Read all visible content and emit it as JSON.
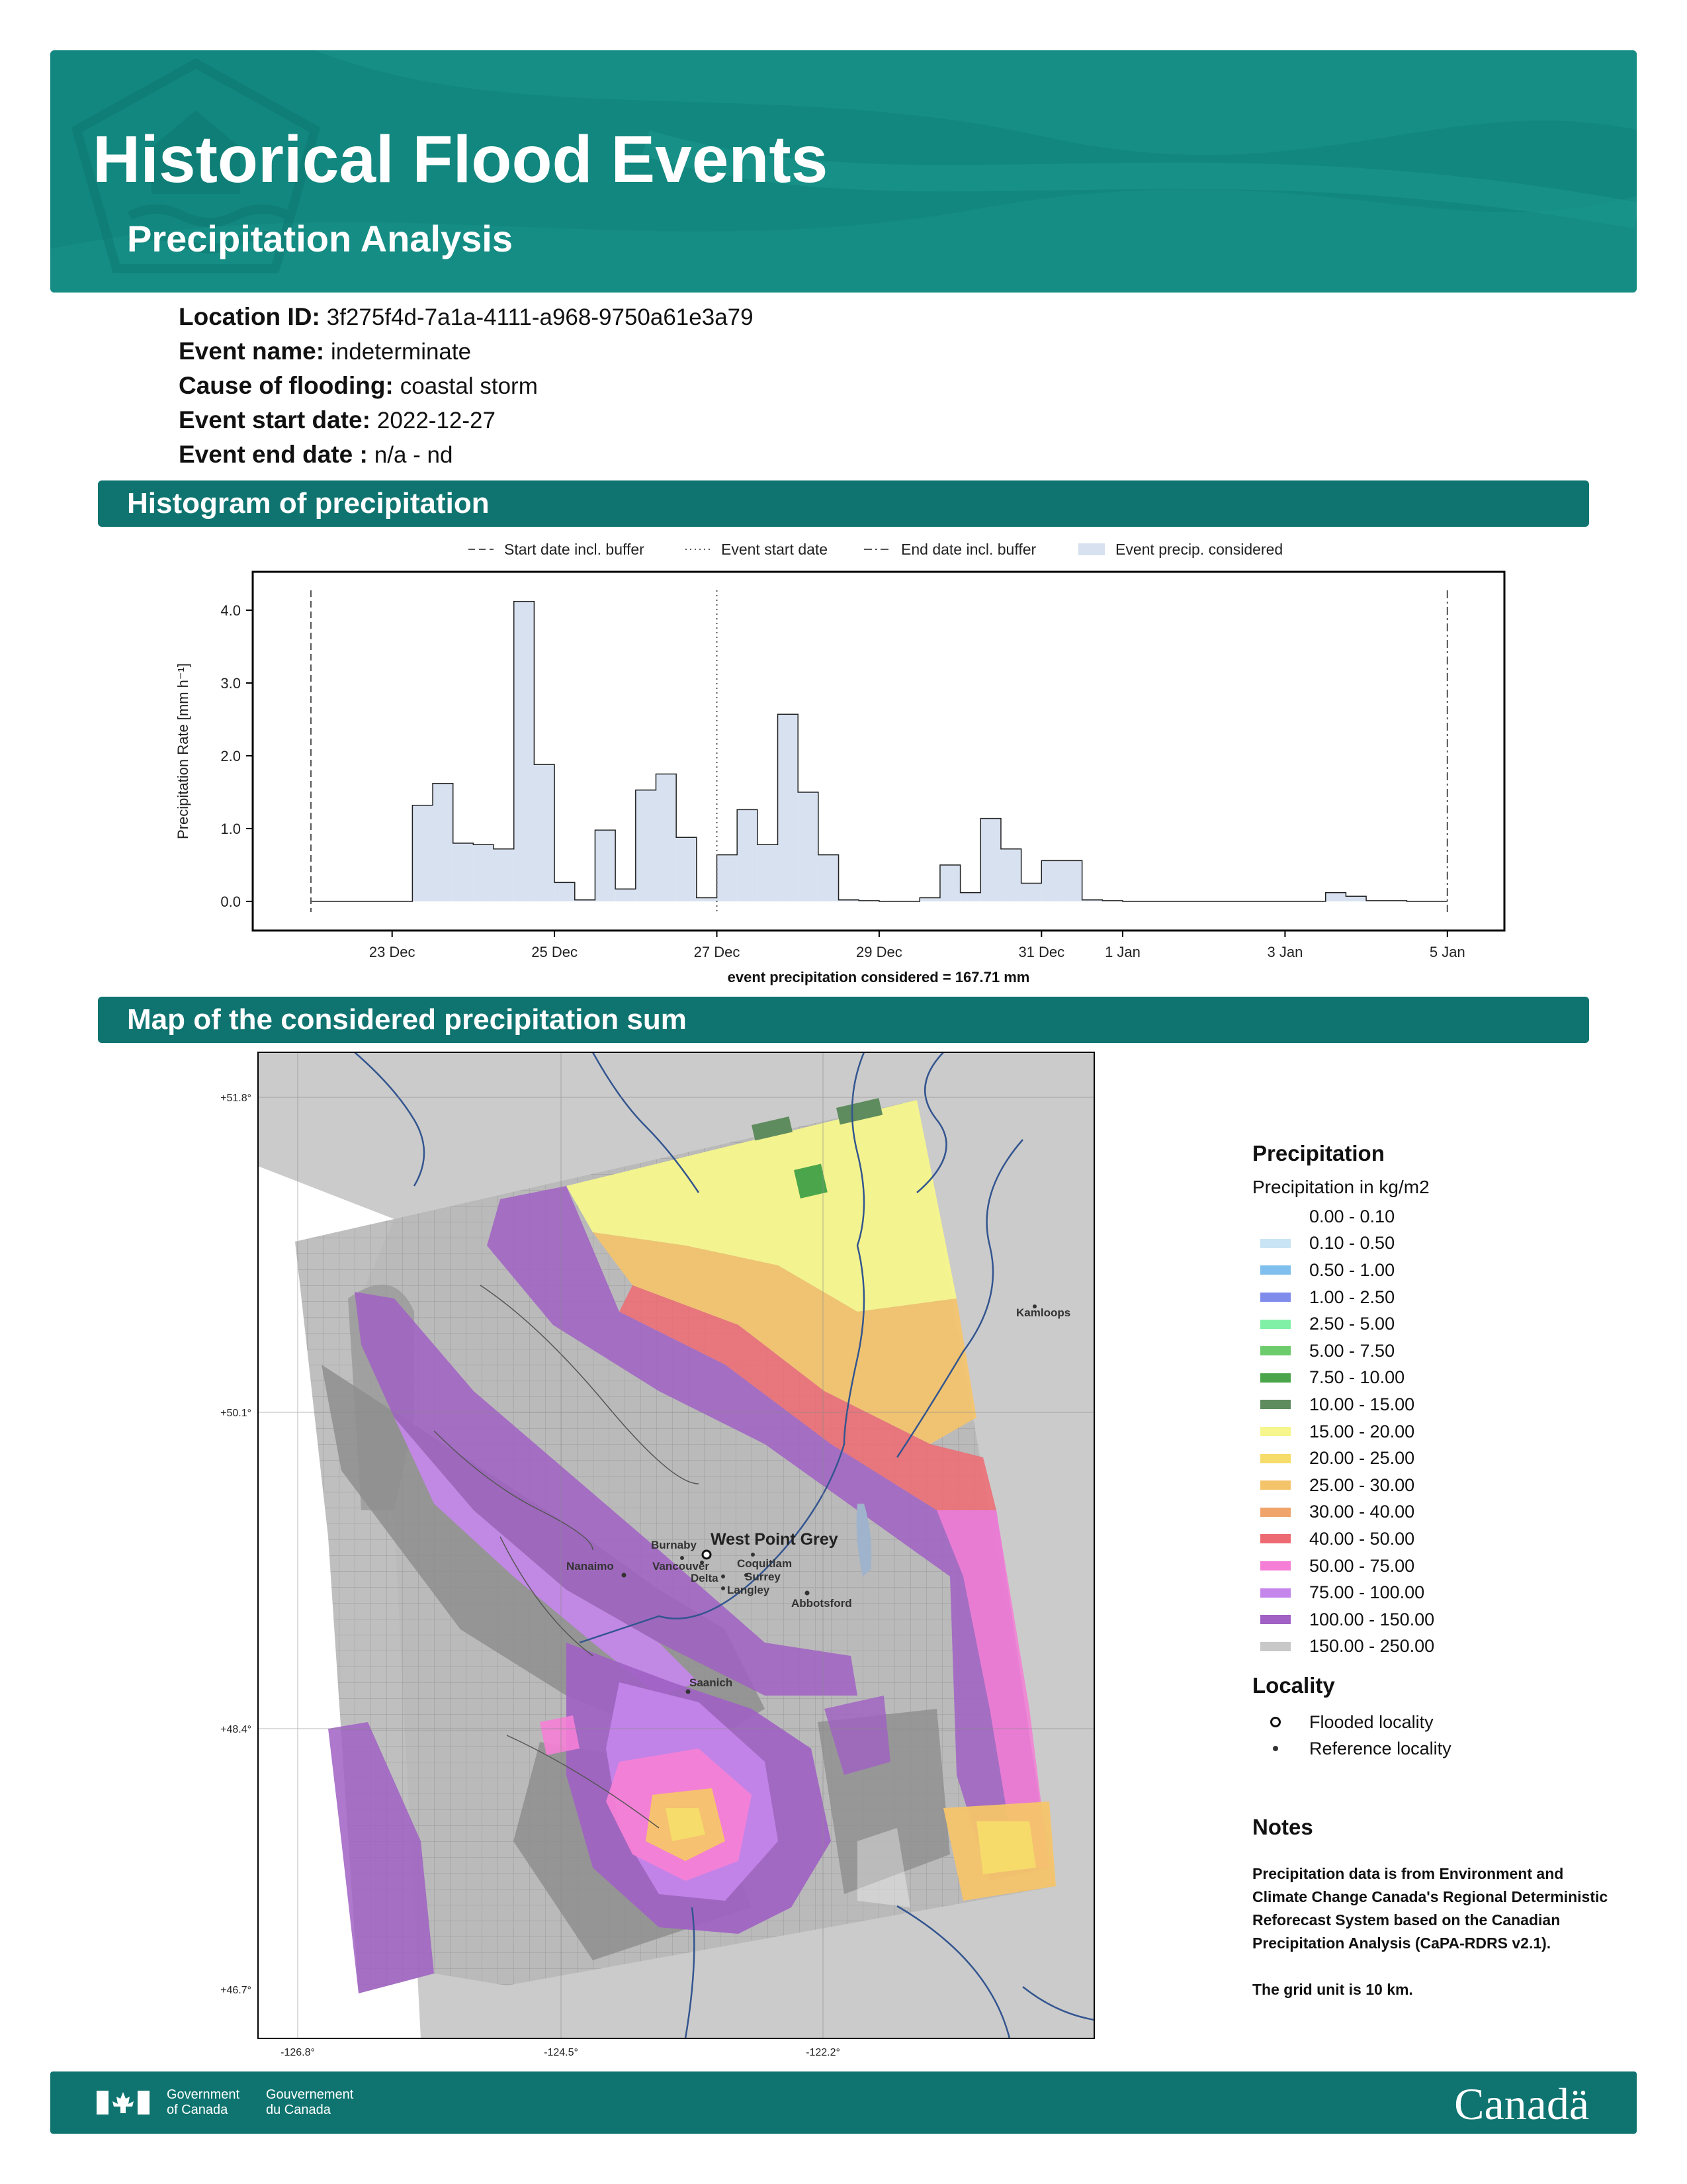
{
  "header": {
    "title": "Historical Flood Events",
    "subtitle": "Precipitation Analysis"
  },
  "event": {
    "location_id_label": "Location ID:",
    "location_id": "3f275f4d-7a1a-4111-a968-9750a61e3a79",
    "event_name_label": "Event name:",
    "event_name": "indeterminate",
    "cause_label": "Cause of flooding:",
    "cause": "coastal storm",
    "start_label": "Event start date:",
    "start_date": "2022-12-27",
    "end_label": "Event end date :",
    "end_date": "n/a - nd"
  },
  "sections": {
    "histogram": "Histogram of precipitation",
    "map": "Map of the considered precipitation sum"
  },
  "chart_data": {
    "type": "bar",
    "ylabel": "Precipitation Rate [mm h⁻¹]",
    "xlabel": "event precipitation considered = 167.71 mm",
    "ylim": [
      -0.3,
      4.5
    ],
    "yticks": [
      0.0,
      1.0,
      2.0,
      3.0,
      4.0
    ],
    "ytick_labels": [
      "0.0",
      "1.0",
      "2.0",
      "3.0",
      "4.0"
    ],
    "x_ticks": [
      {
        "day": 1,
        "label": "23 Dec"
      },
      {
        "day": 3,
        "label": "25 Dec"
      },
      {
        "day": 5,
        "label": "27 Dec"
      },
      {
        "day": 7,
        "label": "29 Dec"
      },
      {
        "day": 9,
        "label": "31 Dec"
      },
      {
        "day": 10,
        "label": "1 Jan"
      },
      {
        "day": 12,
        "label": "3 Jan"
      },
      {
        "day": 14,
        "label": "5 Jan"
      }
    ],
    "legend": {
      "start_buffer": "Start date incl. buffer",
      "event_start": "Event start date",
      "end_buffer": "End date incl. buffer",
      "event_precip": "Event precip. considered"
    },
    "legend_position": "top",
    "start_buffer_day": 0.0,
    "event_start_day": 5.0,
    "end_buffer_day": 14.0,
    "bar_width_days": 0.25,
    "bar_start_day": 0.0,
    "values": [
      0,
      0,
      0,
      0,
      0,
      1.32,
      1.62,
      0.8,
      0.78,
      0.72,
      4.12,
      1.88,
      0.26,
      0.02,
      0.98,
      0.17,
      1.53,
      1.75,
      0.88,
      0.05,
      0.64,
      1.26,
      0.78,
      2.57,
      1.5,
      0.64,
      0.02,
      0.01,
      0,
      0,
      0.05,
      0.5,
      0.12,
      1.14,
      0.72,
      0.25,
      0.56,
      0.56,
      0.02,
      0.01,
      0,
      0,
      0,
      0,
      0,
      0,
      0,
      0,
      0,
      0,
      0.12,
      0.07,
      0.01,
      0.01,
      0,
      0
    ],
    "bar_fill": "#d7e1f0",
    "bar_edge": "#222222"
  },
  "map": {
    "lat_labels": [
      "+51.8°",
      "+50.1°",
      "+48.4°",
      "+46.7°"
    ],
    "lon_labels": [
      "-126.8°",
      "-124.5°",
      "-122.2°"
    ],
    "places": {
      "kamloops": "Kamloops",
      "nanaimo": "Nanaimo",
      "burnaby": "Burnaby",
      "vancouver": "Vancouver",
      "coquitlam": "Coquitlam",
      "delta": "Delta",
      "surrey": "Surrey",
      "langley": "Langley",
      "abbotsford": "Abbotsford",
      "saanich": "Saanich",
      "west_point_grey": "West Point Grey"
    }
  },
  "legend": {
    "title": "Precipitation",
    "subtitle": "Precipitation in kg/m2",
    "items": [
      {
        "label": "0.00 - 0.10",
        "color": "#ffffff"
      },
      {
        "label": "0.10 - 0.50",
        "color": "#c9e4f5"
      },
      {
        "label": "0.50 - 1.00",
        "color": "#7fbfee"
      },
      {
        "label": "1.00 - 2.50",
        "color": "#7f8cec"
      },
      {
        "label": "2.50 - 5.00",
        "color": "#7ff0a6"
      },
      {
        "label": "5.00 - 7.50",
        "color": "#6ccc6c"
      },
      {
        "label": "7.50 - 10.00",
        "color": "#4ba64b"
      },
      {
        "label": "10.00 - 15.00",
        "color": "#5e8c5e"
      },
      {
        "label": "15.00 - 20.00",
        "color": "#f6f68c"
      },
      {
        "label": "20.00 - 25.00",
        "color": "#f6dc6a"
      },
      {
        "label": "25.00 - 30.00",
        "color": "#f5c46a"
      },
      {
        "label": "30.00 - 40.00",
        "color": "#f0a46a"
      },
      {
        "label": "40.00 - 50.00",
        "color": "#ee6a72"
      },
      {
        "label": "50.00 - 75.00",
        "color": "#f57fd6"
      },
      {
        "label": "75.00 - 100.00",
        "color": "#c586ec"
      },
      {
        "label": "100.00 - 150.00",
        "color": "#a060c4"
      },
      {
        "label": "150.00 - 250.00",
        "color": "#c8c8c8"
      }
    ],
    "locality_title": "Locality",
    "flooded": "Flooded locality",
    "reference": "Reference locality"
  },
  "notes": {
    "title": "Notes",
    "text": "Precipitation data is from Environment and Climate Change Canada's Regional Deterministic Reforecast System based on the Canadian Precipitation Analysis (CaPA-RDRS v2.1).",
    "grid": "The grid unit is 10 km."
  },
  "footer": {
    "gov_en": "Government of Canada",
    "gov_fr": "Gouvernement du Canada",
    "wordmark": "Canadä"
  }
}
